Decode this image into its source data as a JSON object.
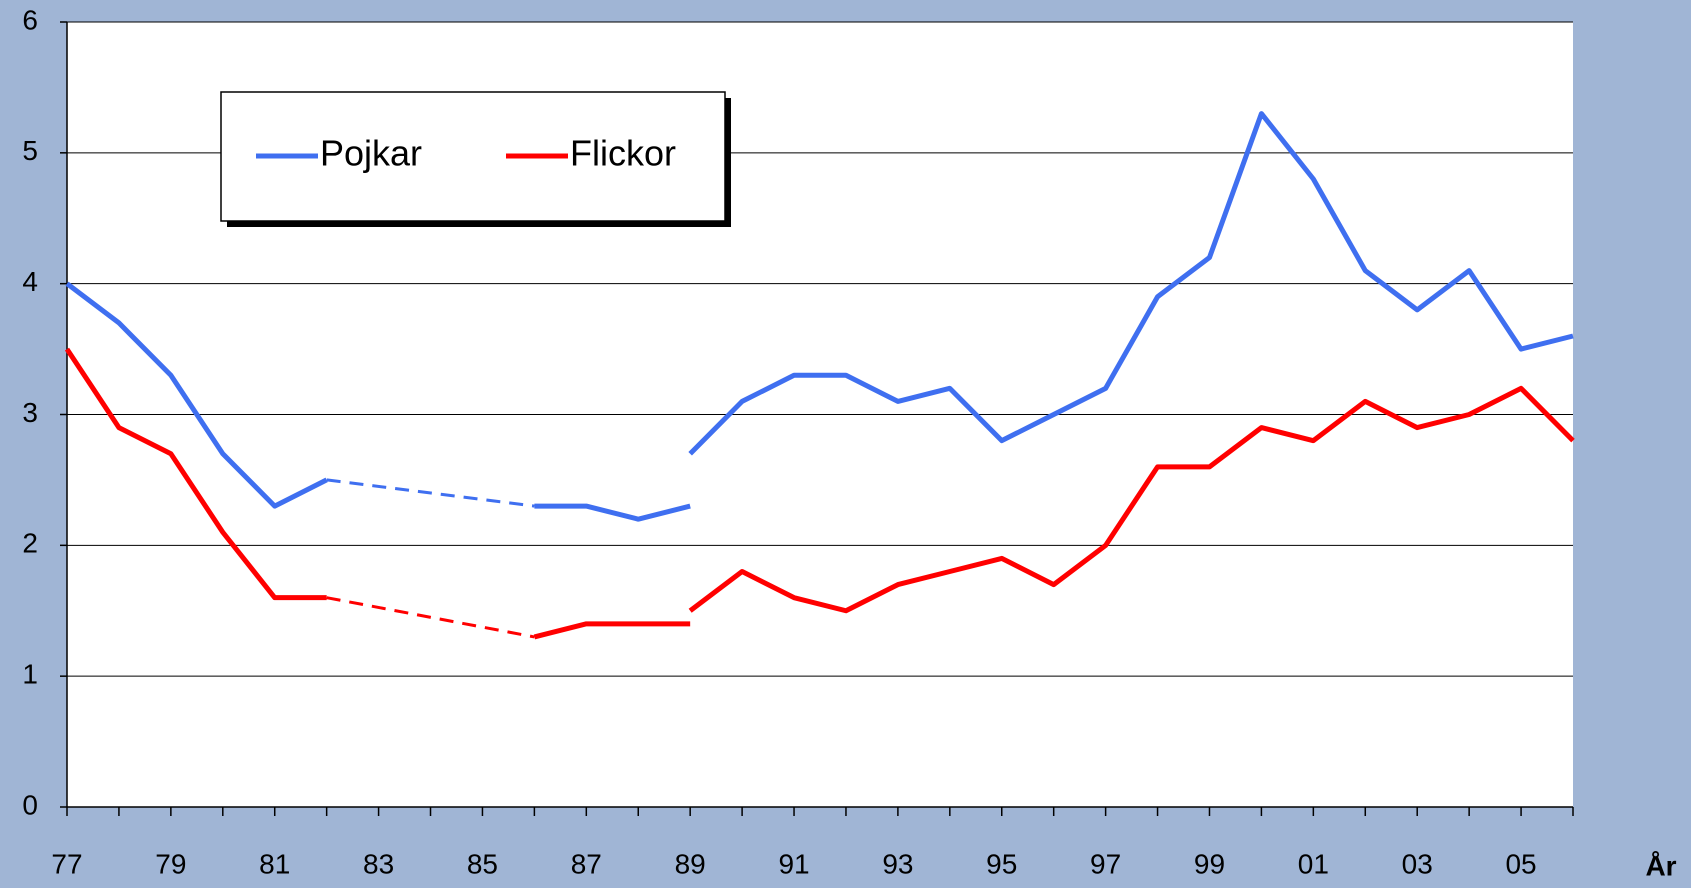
{
  "chart_data": {
    "type": "line",
    "x_label": "År",
    "categories": [
      "77",
      null,
      "79",
      null,
      "81",
      null,
      "83",
      null,
      "85",
      null,
      "87",
      null,
      "89",
      null,
      "91",
      null,
      "93",
      null,
      "95",
      null,
      "97",
      null,
      "99",
      null,
      "01",
      null,
      "03",
      null,
      "05",
      null
    ],
    "series": [
      {
        "name": "Pojkar",
        "color": "#3f6ff0",
        "values": [
          4.0,
          3.7,
          3.3,
          2.7,
          2.3,
          2.5,
          null,
          null,
          null,
          2.3,
          2.3,
          2.2,
          2.3,
          null,
          null,
          null,
          null,
          null,
          null,
          null,
          null,
          null,
          null,
          null,
          null,
          null,
          null,
          null,
          null,
          null
        ]
      },
      {
        "name": "Flickor",
        "color": "#ff0000",
        "values": [
          3.5,
          2.9,
          2.7,
          2.1,
          1.6,
          1.6,
          null,
          null,
          null,
          1.3,
          1.4,
          1.4,
          1.4,
          null,
          null,
          null,
          null,
          null,
          null,
          null,
          null,
          null,
          null,
          null,
          null,
          null,
          null,
          null,
          null,
          null
        ]
      },
      {
        "color": "#3f6ff0",
        "values": [
          null,
          null,
          null,
          null,
          null,
          null,
          null,
          null,
          null,
          null,
          null,
          null,
          2.7,
          3.1,
          3.3,
          3.3,
          3.1,
          3.2,
          2.8,
          3.0,
          3.2,
          3.9,
          4.2,
          5.3,
          4.8,
          4.1,
          3.8,
          4.1,
          3.5,
          3.6
        ]
      },
      {
        "color": "#ff0000",
        "values": [
          null,
          null,
          null,
          null,
          null,
          null,
          null,
          null,
          null,
          null,
          null,
          null,
          1.5,
          1.8,
          1.6,
          1.5,
          1.7,
          1.8,
          1.9,
          1.7,
          2.0,
          2.6,
          2.6,
          2.9,
          2.8,
          3.1,
          2.9,
          3.0,
          3.2,
          2.8
        ]
      }
    ],
    "ylim": [
      0,
      6
    ],
    "yticks": [
      0,
      1,
      2,
      3,
      4,
      5,
      6
    ],
    "grid": true,
    "gap_style": "dashed"
  }
}
